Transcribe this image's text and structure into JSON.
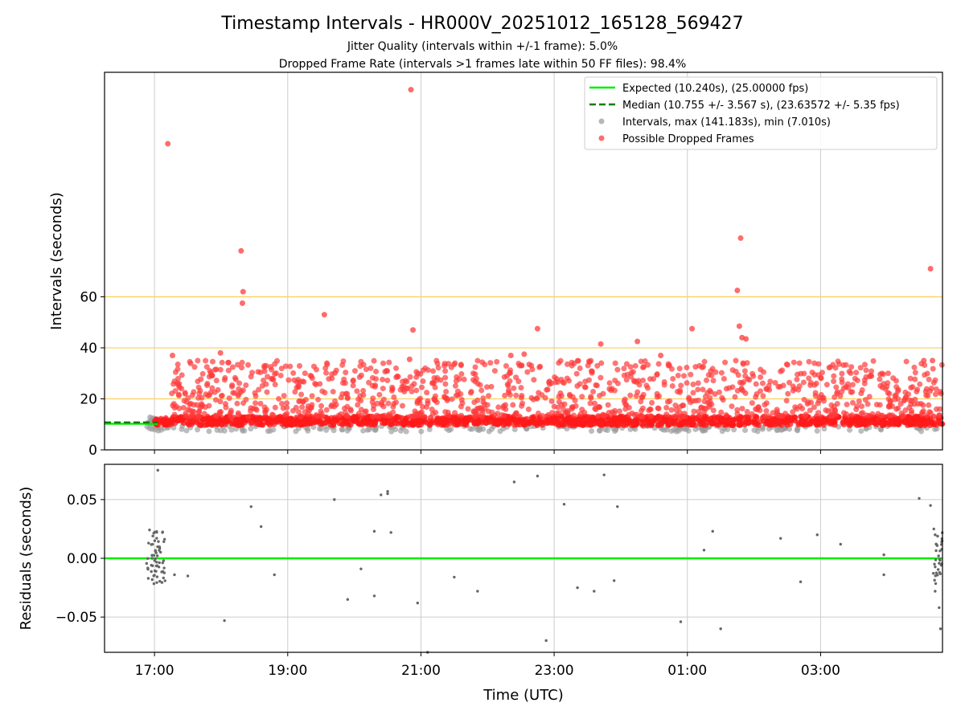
{
  "chart_data": {
    "type": "scatter",
    "title": "Timestamp Intervals - HR000V_20251012_165128_569427",
    "subtitle_lines": [
      "Jitter Quality (intervals within +/-1 frame): 5.0%",
      "Dropped Frame Rate (intervals >1 frames late within 50 FF files): 98.4%"
    ],
    "xlabel": "Time (UTC)",
    "x_tick_labels": [
      "17:00",
      "19:00",
      "21:00",
      "23:00",
      "01:00",
      "03:00"
    ],
    "x_tick_hours": [
      17,
      19,
      21,
      23,
      25,
      27
    ],
    "xlim_hours": [
      16.25,
      28.83
    ],
    "top_panel": {
      "ylabel": "Intervals (seconds)",
      "ylim": [
        0,
        148
      ],
      "y_ticks": [
        0,
        20,
        40,
        60
      ],
      "y_tick_labels": [
        "0",
        "20",
        "40",
        "60"
      ],
      "reference_lines": [
        20,
        40,
        60
      ],
      "expected_interval": 10.24,
      "median_interval": 10.755,
      "legend": [
        {
          "label": "Expected (10.240s), (25.00000 fps)",
          "kind": "line",
          "color": "#00ee00"
        },
        {
          "label": "Median (10.755 +/- 3.567 s), (23.63572 +/- 5.35 fps)",
          "kind": "dashed",
          "color": "#008000"
        },
        {
          "label": "Intervals, max (141.183s), min (7.010s)",
          "kind": "marker",
          "color": "#999999"
        },
        {
          "label": "Possible Dropped Frames",
          "kind": "marker",
          "color": "#ff3b3b"
        }
      ],
      "dropped_outliers": [
        {
          "x": 17.2,
          "y": 120
        },
        {
          "x": 17.27,
          "y": 37
        },
        {
          "x": 17.99,
          "y": 38
        },
        {
          "x": 18.3,
          "y": 78
        },
        {
          "x": 18.33,
          "y": 62
        },
        {
          "x": 18.32,
          "y": 57.5
        },
        {
          "x": 19.55,
          "y": 53
        },
        {
          "x": 20.85,
          "y": 141.2
        },
        {
          "x": 20.88,
          "y": 47
        },
        {
          "x": 20.83,
          "y": 35.5
        },
        {
          "x": 22.35,
          "y": 37
        },
        {
          "x": 22.55,
          "y": 37.5
        },
        {
          "x": 22.75,
          "y": 47.5
        },
        {
          "x": 23.7,
          "y": 41.5
        },
        {
          "x": 24.25,
          "y": 42.5
        },
        {
          "x": 24.6,
          "y": 37
        },
        {
          "x": 25.07,
          "y": 47.5
        },
        {
          "x": 25.75,
          "y": 62.5
        },
        {
          "x": 25.8,
          "y": 83
        },
        {
          "x": 25.78,
          "y": 48.5
        },
        {
          "x": 25.82,
          "y": 44
        },
        {
          "x": 25.88,
          "y": 43.5
        },
        {
          "x": 28.65,
          "y": 71
        },
        {
          "x": 28.55,
          "y": 35
        },
        {
          "x": 28.68,
          "y": 35
        }
      ]
    },
    "bottom_panel": {
      "ylabel": "Residuals (seconds)",
      "ylim": [
        -0.08,
        0.08
      ],
      "y_ticks": [
        -0.05,
        0,
        0.05
      ],
      "y_tick_labels": [
        "−0.05",
        "0.00",
        "0.05"
      ],
      "zero_line": 0,
      "points": [
        {
          "x": 17.05,
          "y": 0.075
        },
        {
          "x": 17.12,
          "y": 0.022
        },
        {
          "x": 17.3,
          "y": -0.014
        },
        {
          "x": 17.5,
          "y": -0.015
        },
        {
          "x": 18.05,
          "y": -0.053
        },
        {
          "x": 18.45,
          "y": 0.044
        },
        {
          "x": 18.6,
          "y": 0.027
        },
        {
          "x": 18.8,
          "y": -0.014
        },
        {
          "x": 19.7,
          "y": 0.05
        },
        {
          "x": 19.9,
          "y": -0.035
        },
        {
          "x": 20.1,
          "y": -0.009
        },
        {
          "x": 20.3,
          "y": 0.023
        },
        {
          "x": 20.3,
          "y": -0.032
        },
        {
          "x": 20.4,
          "y": 0.054
        },
        {
          "x": 20.5,
          "y": 0.057
        },
        {
          "x": 20.5,
          "y": 0.055
        },
        {
          "x": 20.55,
          "y": 0.022
        },
        {
          "x": 20.95,
          "y": -0.038
        },
        {
          "x": 21.1,
          "y": -0.08
        },
        {
          "x": 21.5,
          "y": -0.016
        },
        {
          "x": 21.85,
          "y": -0.028
        },
        {
          "x": 22.4,
          "y": 0.065
        },
        {
          "x": 22.75,
          "y": 0.07
        },
        {
          "x": 22.88,
          "y": -0.07
        },
        {
          "x": 23.15,
          "y": 0.046
        },
        {
          "x": 23.35,
          "y": -0.025
        },
        {
          "x": 23.6,
          "y": -0.028
        },
        {
          "x": 23.75,
          "y": 0.071
        },
        {
          "x": 23.9,
          "y": -0.019
        },
        {
          "x": 23.95,
          "y": 0.044
        },
        {
          "x": 24.9,
          "y": -0.054
        },
        {
          "x": 25.25,
          "y": 0.007
        },
        {
          "x": 25.38,
          "y": 0.023
        },
        {
          "x": 25.5,
          "y": -0.06
        },
        {
          "x": 26.4,
          "y": 0.017
        },
        {
          "x": 26.7,
          "y": -0.02
        },
        {
          "x": 26.95,
          "y": 0.02
        },
        {
          "x": 27.3,
          "y": 0.012
        },
        {
          "x": 27.95,
          "y": 0.003
        },
        {
          "x": 27.95,
          "y": -0.014
        },
        {
          "x": 28.48,
          "y": 0.051
        },
        {
          "x": 28.65,
          "y": 0.045
        },
        {
          "x": 28.7,
          "y": 0.025
        },
        {
          "x": 28.72,
          "y": 0.02
        },
        {
          "x": 28.72,
          "y": -0.028
        },
        {
          "x": 28.78,
          "y": -0.042
        },
        {
          "x": 28.8,
          "y": -0.06
        }
      ]
    }
  }
}
